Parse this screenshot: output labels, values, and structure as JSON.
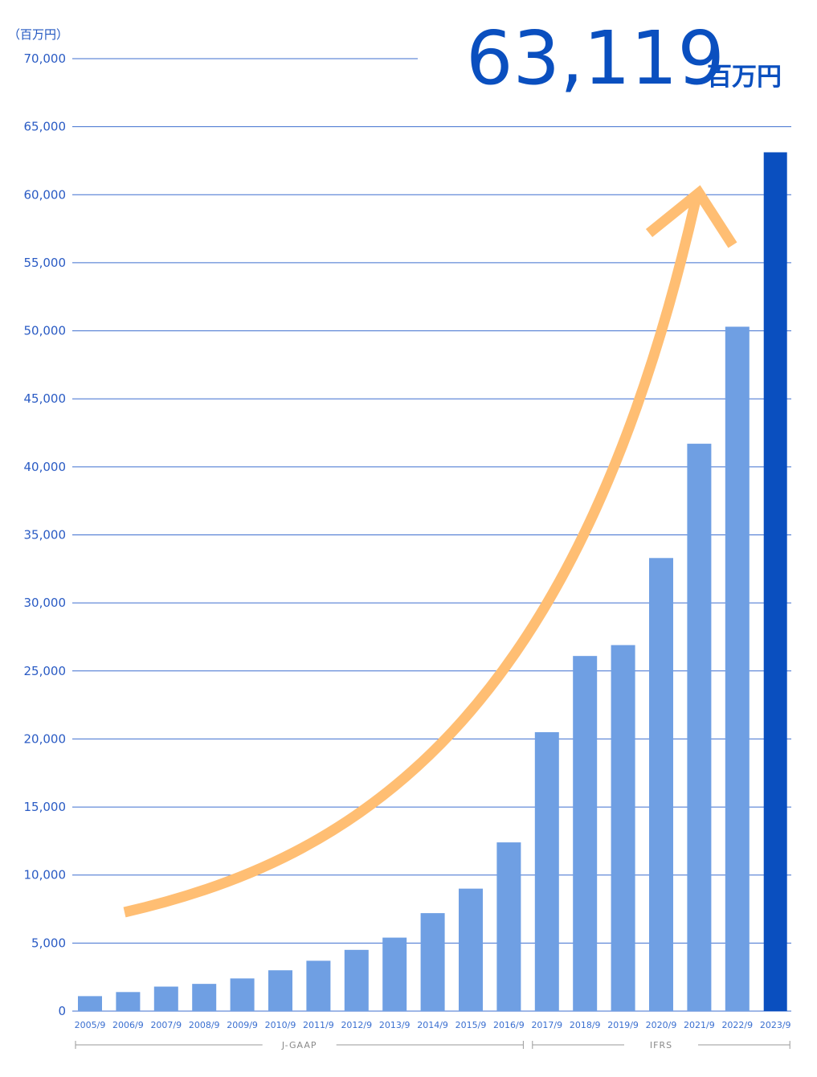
{
  "chart_data": {
    "type": "bar",
    "unit_label": "（百万円）",
    "highlight": {
      "value_text": "63,119",
      "unit_text": "百万円"
    },
    "categories": [
      "2005/9",
      "2006/9",
      "2007/9",
      "2008/9",
      "2009/9",
      "2010/9",
      "2011/9",
      "2012/9",
      "2013/9",
      "2014/9",
      "2015/9",
      "2016/9",
      "2017/9",
      "2018/9",
      "2019/9",
      "2020/9",
      "2021/9",
      "2022/9",
      "2023/9"
    ],
    "values": [
      1100,
      1400,
      1800,
      2000,
      2400,
      3000,
      3700,
      4500,
      5400,
      7200,
      9000,
      12400,
      20500,
      26100,
      26900,
      33300,
      41700,
      50300,
      63119
    ],
    "ylim": [
      0,
      70000
    ],
    "yticks": [
      0,
      5000,
      10000,
      15000,
      20000,
      25000,
      30000,
      35000,
      40000,
      45000,
      50000,
      55000,
      60000,
      65000,
      70000
    ],
    "ytick_labels": [
      "0",
      "5,000",
      "10,000",
      "15,000",
      "20,000",
      "25,000",
      "30,000",
      "35,000",
      "40,000",
      "45,000",
      "50,000",
      "55,000",
      "60,000",
      "65,000",
      "70,000"
    ],
    "periods": [
      {
        "label": "J-GAAP",
        "start": "2005/9",
        "end": "2016/9"
      },
      {
        "label": "IFRS",
        "start": "2017/9",
        "end": "2023/9"
      }
    ],
    "colors": {
      "bar": "#6f9fe3",
      "highlight_bar": "#0a4fbf",
      "grid": "#3f6fcf",
      "arrow": "#ffbe73"
    },
    "grid": true
  }
}
